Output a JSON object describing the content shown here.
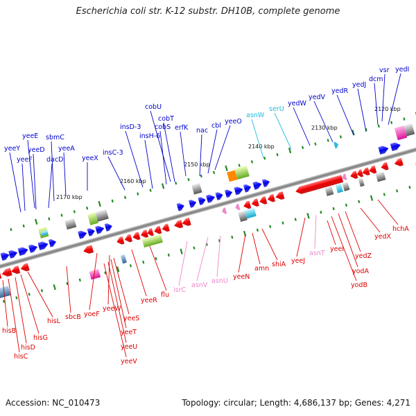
{
  "title": "Escherichia coli str. K-12 substr. DH10B, complete genome",
  "footer": {
    "accession_label": "Accession:",
    "accession": "NC_010473",
    "topology": "Topology: circular; Length: 4,686,137 bp; Genes: 4,271"
  },
  "colors": {
    "forward_gene": "#1010ee",
    "reverse_gene": "#ee1010",
    "trna": "#33bbdd",
    "trna_reverse": "#ee88cc",
    "backbone": "#888888",
    "tick_mark": "#228822"
  },
  "scale_labels": [
    "2120 kbp",
    "2130 kbp",
    "2140 kbp",
    "2150 kbp",
    "2160 kbp",
    "2170 kbp"
  ],
  "upper_labels": [
    {
      "text": "yedI",
      "color": "blue"
    },
    {
      "text": "vsr",
      "color": "blue"
    },
    {
      "text": "dcm",
      "color": "blue"
    },
    {
      "text": "yedJ",
      "color": "blue"
    },
    {
      "text": "yedR",
      "color": "blue"
    },
    {
      "text": "yedV",
      "color": "blue"
    },
    {
      "text": "yedW",
      "color": "blue"
    },
    {
      "text": "serU",
      "color": "cyan"
    },
    {
      "text": "asnW",
      "color": "cyan"
    },
    {
      "text": "yeeO",
      "color": "blue"
    },
    {
      "text": "cbl",
      "color": "blue"
    },
    {
      "text": "nac",
      "color": "blue"
    },
    {
      "text": "erfK",
      "color": "blue"
    },
    {
      "text": "cobU",
      "color": "blue"
    },
    {
      "text": "cobT",
      "color": "blue"
    },
    {
      "text": "cobS",
      "color": "blue"
    },
    {
      "text": "insD-3",
      "color": "blue"
    },
    {
      "text": "insH-6",
      "color": "blue"
    },
    {
      "text": "insC-3",
      "color": "blue"
    },
    {
      "text": "yeeX",
      "color": "blue"
    },
    {
      "text": "yeeA",
      "color": "blue"
    },
    {
      "text": "sbmC",
      "color": "blue"
    },
    {
      "text": "dacD",
      "color": "blue"
    },
    {
      "text": "yeeE",
      "color": "blue"
    },
    {
      "text": "yeeD",
      "color": "blue"
    },
    {
      "text": "yeeY",
      "color": "blue"
    },
    {
      "text": "yeeF",
      "color": "blue"
    }
  ],
  "lower_labels": [
    {
      "text": "hchA",
      "color": "red"
    },
    {
      "text": "yedX",
      "color": "red"
    },
    {
      "text": "yedZ",
      "color": "red"
    },
    {
      "text": "yodA",
      "color": "red"
    },
    {
      "text": "yodB",
      "color": "red"
    },
    {
      "text": "yeeI",
      "color": "red"
    },
    {
      "text": "asnT",
      "color": "pink"
    },
    {
      "text": "yeeJ",
      "color": "red"
    },
    {
      "text": "shiA",
      "color": "red"
    },
    {
      "text": "amn",
      "color": "red"
    },
    {
      "text": "yeeN",
      "color": "red"
    },
    {
      "text": "asnU",
      "color": "pink"
    },
    {
      "text": "asnV",
      "color": "pink"
    },
    {
      "text": "isrC",
      "color": "pink"
    },
    {
      "text": "flu",
      "color": "red"
    },
    {
      "text": "yeeR",
      "color": "red"
    },
    {
      "text": "yoeF",
      "color": "red"
    },
    {
      "text": "yeeW",
      "color": "red"
    },
    {
      "text": "yeeS",
      "color": "red"
    },
    {
      "text": "yeeT",
      "color": "red"
    },
    {
      "text": "yeeU",
      "color": "red"
    },
    {
      "text": "yeeV",
      "color": "red"
    },
    {
      "text": "sbcB",
      "color": "red"
    },
    {
      "text": "hisL",
      "color": "red"
    },
    {
      "text": "hisG",
      "color": "red"
    },
    {
      "text": "hisD",
      "color": "red"
    },
    {
      "text": "hisC",
      "color": "red"
    },
    {
      "text": "hisB",
      "color": "red"
    }
  ]
}
